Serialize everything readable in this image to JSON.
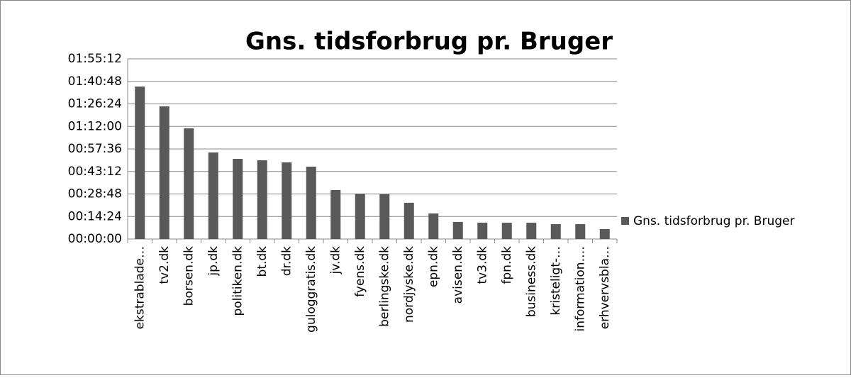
{
  "chart_data": {
    "type": "bar",
    "title": "Gns. tidsforbrug pr. Bruger",
    "categories": [
      "ekstrablade…",
      "tv2.dk",
      "borsen.dk",
      "jp.dk",
      "politiken.dk",
      "bt.dk",
      "dr.dk",
      "guloggratis.dk",
      "jv.dk",
      "fyens.dk",
      "berlingske.dk",
      "nordjyske.dk",
      "epn.dk",
      "avisen.dk",
      "tv3.dk",
      "fpn.dk",
      "business.dk",
      "kristeligt-…",
      "information.…",
      "erhvervsbla…"
    ],
    "series": [
      {
        "name": "Gns. tidsforbrug pr. Bruger",
        "color": "#595959",
        "values": [
          5850,
          5090,
          4245,
          3320,
          3075,
          3020,
          2940,
          2775,
          1880,
          1740,
          1715,
          1390,
          980,
          655,
          625,
          625,
          625,
          570,
          570,
          380
        ]
      }
    ],
    "ylim": [
      0,
      6912
    ],
    "yticks": [
      {
        "value": 0,
        "label": "00:00:00"
      },
      {
        "value": 864,
        "label": "00:14:24"
      },
      {
        "value": 1728,
        "label": "00:28:48"
      },
      {
        "value": 2592,
        "label": "00:43:12"
      },
      {
        "value": 3456,
        "label": "00:57:36"
      },
      {
        "value": 4320,
        "label": "01:12:00"
      },
      {
        "value": 5184,
        "label": "01:26:24"
      },
      {
        "value": 6048,
        "label": "01:40:48"
      },
      {
        "value": 6912,
        "label": "01:55:12"
      }
    ],
    "grid": true,
    "legend": "right"
  }
}
